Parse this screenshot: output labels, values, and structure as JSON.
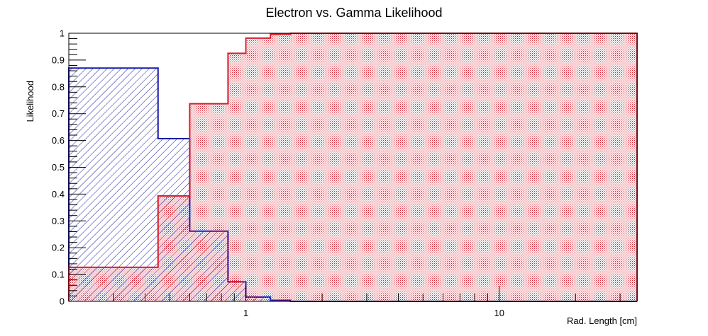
{
  "chart_data": {
    "type": "area",
    "title": "Electron vs. Gamma Likelihood",
    "xlabel": "Rad. Length [cm]",
    "ylabel": "Likelihood",
    "xscale": "log",
    "xlim": [
      0.2,
      35
    ],
    "ylim": [
      0,
      1
    ],
    "grid": false,
    "legend": "none",
    "x_bin_edges": [
      0.2,
      0.45,
      0.6,
      0.85,
      1.0,
      1.25,
      1.5,
      35
    ],
    "x_tick_labels": [
      {
        "value": 1,
        "label": "1"
      },
      {
        "value": 10,
        "label": "10"
      }
    ],
    "y_ticks": [
      {
        "value": 0,
        "label": "0"
      },
      {
        "value": 0.1,
        "label": "0.1"
      },
      {
        "value": 0.2,
        "label": "0.2"
      },
      {
        "value": 0.3,
        "label": "0.3"
      },
      {
        "value": 0.4,
        "label": "0.4"
      },
      {
        "value": 0.5,
        "label": "0.5"
      },
      {
        "value": 0.6,
        "label": "0.6"
      },
      {
        "value": 0.7,
        "label": "0.7"
      },
      {
        "value": 0.8,
        "label": "0.8"
      },
      {
        "value": 0.9,
        "label": "0.9"
      },
      {
        "value": 1,
        "label": "1"
      }
    ],
    "series": [
      {
        "values": [
          0.87,
          0.607,
          0.262,
          0.073,
          0.016,
          0.004,
          0.0
        ],
        "color": "#1a1aa8",
        "fill_pattern": "diagonal-hatch"
      },
      {
        "values": [
          0.127,
          0.393,
          0.737,
          0.925,
          0.982,
          0.996,
          1.0
        ],
        "color": "#d8202f",
        "fill_pattern": "dense-dots"
      }
    ]
  }
}
